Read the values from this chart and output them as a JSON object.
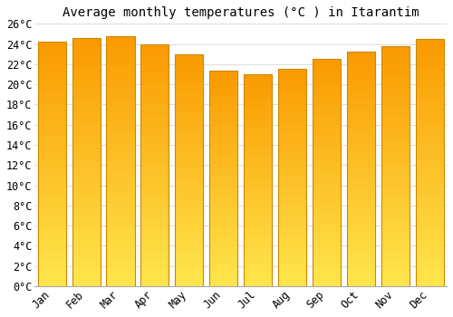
{
  "title": "Average monthly temperatures (°C ) in Itarantim",
  "months": [
    "Jan",
    "Feb",
    "Mar",
    "Apr",
    "May",
    "Jun",
    "Jul",
    "Aug",
    "Sep",
    "Oct",
    "Nov",
    "Dec"
  ],
  "values": [
    24.2,
    24.6,
    24.8,
    24.0,
    23.0,
    21.4,
    21.0,
    21.5,
    22.5,
    23.2,
    23.8,
    24.5
  ],
  "bar_color_top": "#FFD966",
  "bar_color_bottom": "#FFA500",
  "bar_edge_color": "#CC8800",
  "ylim": [
    0,
    26
  ],
  "ytick_step": 2,
  "background_color": "#ffffff",
  "grid_color": "#dddddd",
  "title_fontsize": 10,
  "tick_fontsize": 8.5,
  "font_family": "monospace"
}
